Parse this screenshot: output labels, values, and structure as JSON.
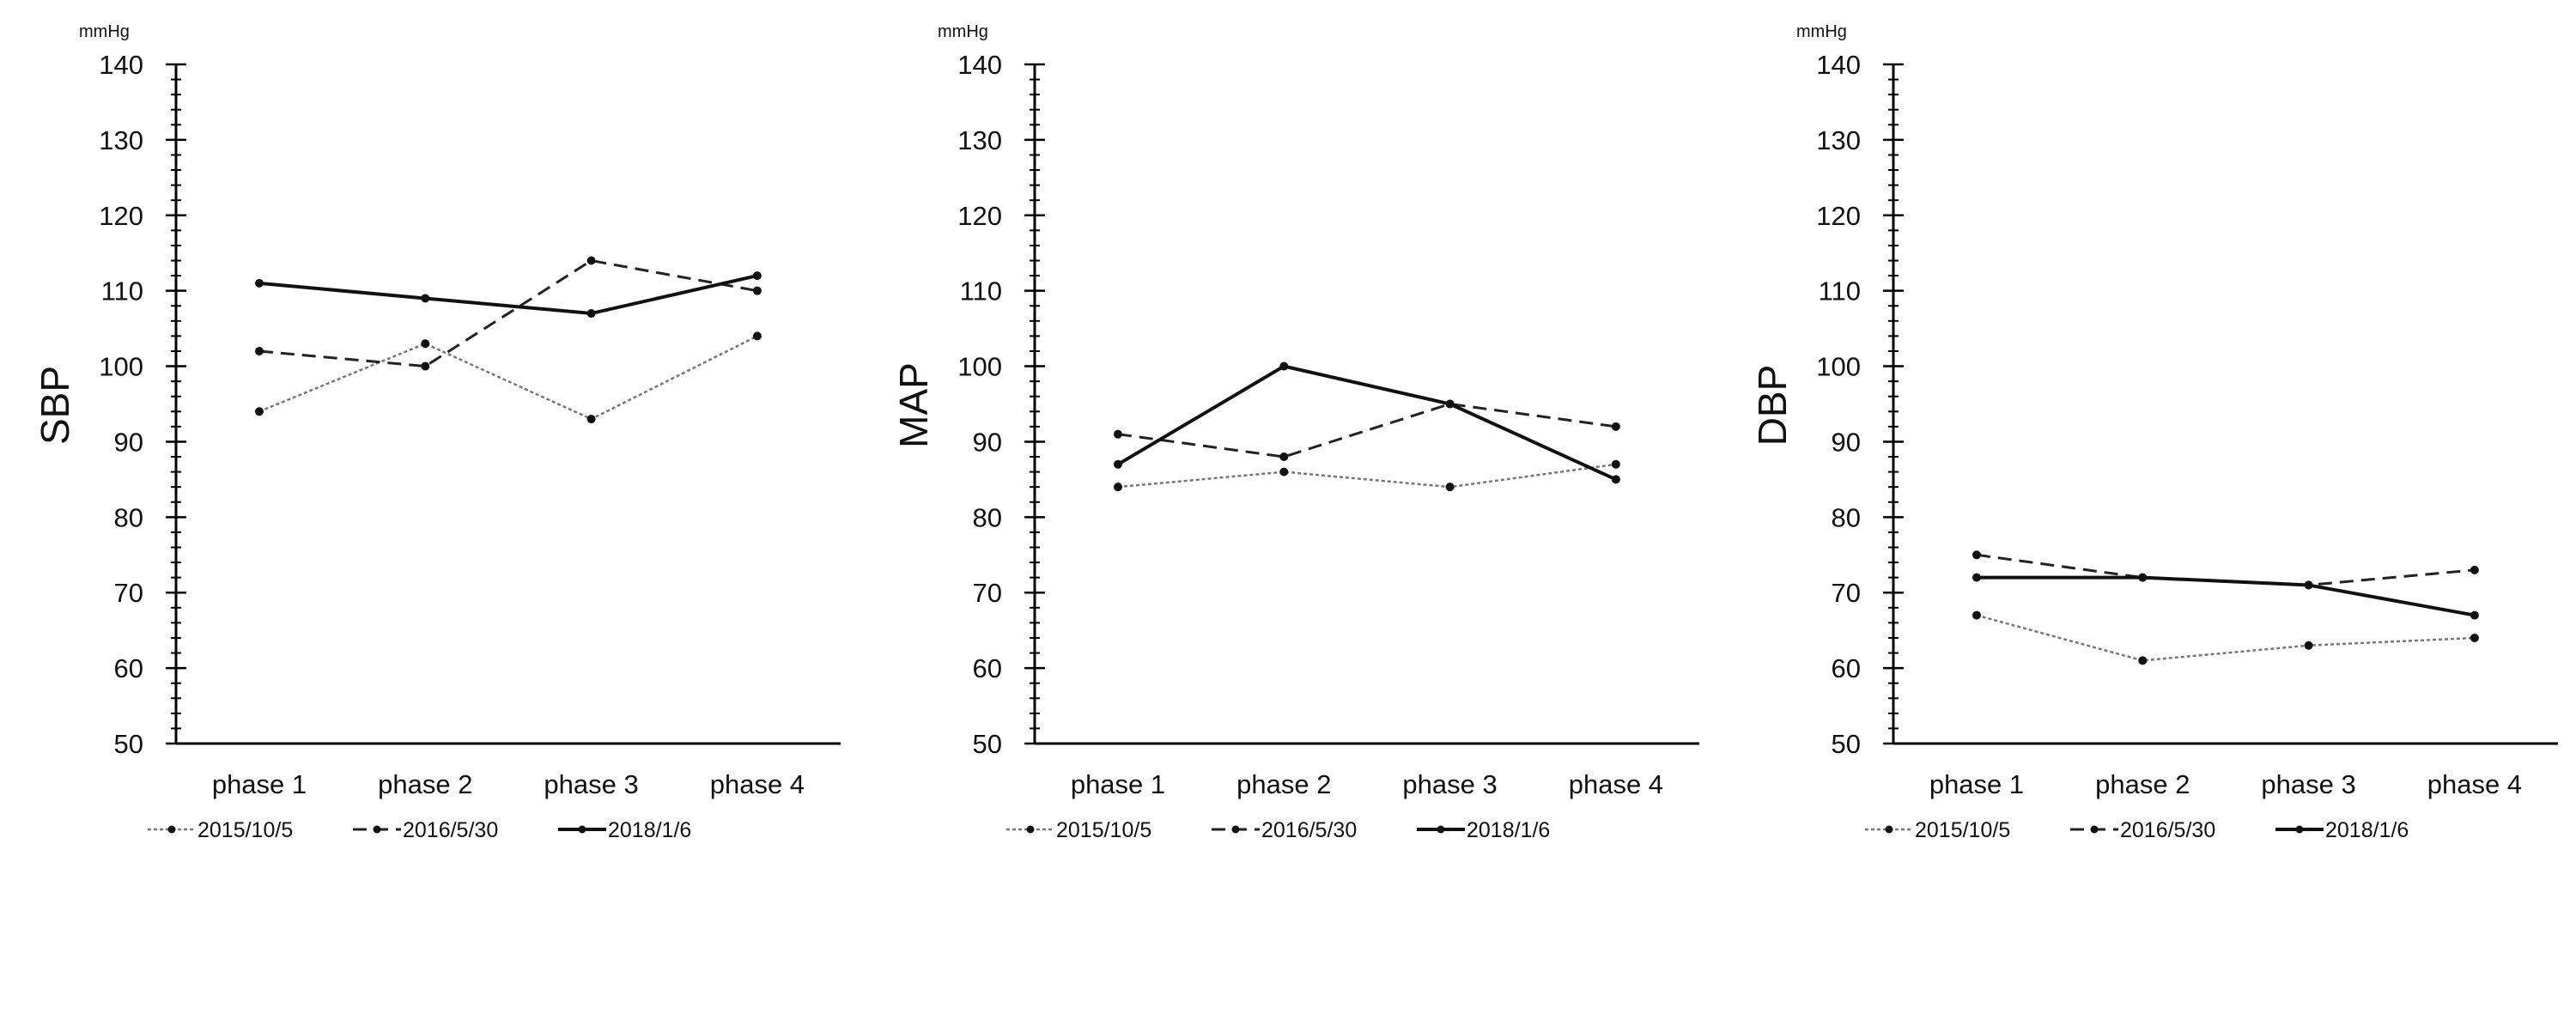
{
  "chart_data": [
    {
      "type": "line",
      "unit_label": "mmHg",
      "ylabel": "SBP",
      "xlabel": "",
      "ylim": [
        50,
        140
      ],
      "major_ticks": [
        50,
        60,
        70,
        80,
        90,
        100,
        110,
        120,
        130,
        140
      ],
      "minor_tick_step": 2,
      "grid": false,
      "legend_position": "bottom",
      "categories": [
        "phase 1",
        "phase 2",
        "phase 3",
        "phase 4"
      ],
      "series": [
        {
          "name": "2015/10/5",
          "style": "dotted",
          "color": "#777777",
          "values": [
            94,
            103,
            93,
            104
          ]
        },
        {
          "name": "2016/5/30",
          "style": "dashed",
          "color": "#222222",
          "values": [
            102,
            100,
            114,
            110
          ]
        },
        {
          "name": "2018/1/6",
          "style": "solid",
          "color": "#111111",
          "values": [
            111,
            109,
            107,
            112
          ]
        }
      ]
    },
    {
      "type": "line",
      "unit_label": "mmHg",
      "ylabel": "MAP",
      "xlabel": "",
      "ylim": [
        50,
        140
      ],
      "major_ticks": [
        50,
        60,
        70,
        80,
        90,
        100,
        110,
        120,
        130,
        140
      ],
      "minor_tick_step": 2,
      "grid": false,
      "legend_position": "bottom",
      "categories": [
        "phase 1",
        "phase 2",
        "phase 3",
        "phase 4"
      ],
      "series": [
        {
          "name": "2015/10/5",
          "style": "dotted",
          "color": "#777777",
          "values": [
            84,
            86,
            84,
            87
          ]
        },
        {
          "name": "2016/5/30",
          "style": "dashed",
          "color": "#222222",
          "values": [
            91,
            88,
            95,
            92
          ]
        },
        {
          "name": "2018/1/6",
          "style": "solid",
          "color": "#111111",
          "values": [
            87,
            100,
            95,
            85
          ]
        }
      ]
    },
    {
      "type": "line",
      "unit_label": "mmHg",
      "ylabel": "DBP",
      "xlabel": "",
      "ylim": [
        50,
        140
      ],
      "major_ticks": [
        50,
        60,
        70,
        80,
        90,
        100,
        110,
        120,
        130,
        140
      ],
      "minor_tick_step": 2,
      "grid": false,
      "legend_position": "bottom",
      "categories": [
        "phase 1",
        "phase 2",
        "phase 3",
        "phase 4"
      ],
      "series": [
        {
          "name": "2015/10/5",
          "style": "dotted",
          "color": "#777777",
          "values": [
            67,
            61,
            63,
            64
          ]
        },
        {
          "name": "2016/5/30",
          "style": "dashed",
          "color": "#222222",
          "values": [
            75,
            72,
            71,
            73
          ]
        },
        {
          "name": "2018/1/6",
          "style": "solid",
          "color": "#111111",
          "values": [
            72,
            72,
            71,
            67
          ]
        }
      ]
    }
  ]
}
